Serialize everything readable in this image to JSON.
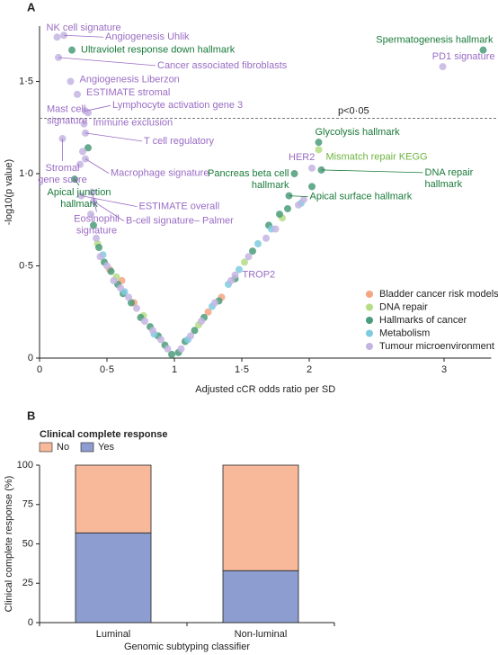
{
  "chart_data": [
    {
      "panel": "A",
      "type": "scatter",
      "xlabel": "Adjusted cCR odds ratio per SD",
      "ylabel": "-log10(p value)",
      "xlim": [
        0,
        3.35
      ],
      "ylim": [
        0,
        1.8
      ],
      "xticks": [
        0,
        {
          "value": 0.5,
          "label": "0·5"
        },
        1,
        {
          "value": 1.5,
          "label": "1·5"
        },
        2,
        3
      ],
      "yticks": [
        0,
        {
          "value": 0.5,
          "label": "0·5"
        },
        {
          "value": 1,
          "label": "1·0"
        },
        {
          "value": 1.5,
          "label": "1·5"
        }
      ],
      "threshold": 1.3,
      "threshold_label": "p<0·05",
      "legend": "lower right",
      "series": [
        {
          "name": "Bladder cancer risk models",
          "color": "#f4a582",
          "x": [
            0.52,
            0.61,
            0.7,
            1.25,
            1.35
          ],
          "values": [
            0.48,
            0.42,
            0.3,
            0.25,
            0.33
          ]
        },
        {
          "name": "DNA repair",
          "color": "#b5dd85",
          "label_color": "#6db33f",
          "x": [
            2.07,
            0.43,
            0.57,
            0.77,
            1.18,
            1.52,
            1.8
          ],
          "values": [
            1.13,
            0.62,
            0.44,
            0.23,
            0.18,
            0.52,
            0.76
          ],
          "labels": [
            "Mismatch repair KEGG",
            null,
            null,
            null,
            null,
            null,
            null
          ]
        },
        {
          "name": "Hallmarks of cancer",
          "color": "#4b9c7a",
          "label_color": "#1a7a3a",
          "x": [
            0.24,
            3.29,
            0.26,
            2.07,
            1.89,
            2.09,
            1.85,
            0.36,
            0.4,
            0.44,
            0.48,
            0.53,
            0.58,
            0.62,
            0.68,
            0.75,
            0.82,
            0.88,
            0.93,
            0.98,
            1.03,
            1.08,
            1.15,
            1.22,
            1.33,
            1.45,
            1.58,
            1.7,
            1.78,
            1.84,
            2.02
          ],
          "values": [
            1.67,
            1.67,
            0.97,
            1.17,
            1.0,
            1.02,
            0.88,
            1.14,
            0.72,
            0.6,
            0.52,
            0.47,
            0.4,
            0.35,
            0.3,
            0.22,
            0.17,
            0.12,
            0.07,
            0.02,
            0.03,
            0.09,
            0.15,
            0.22,
            0.31,
            0.43,
            0.58,
            0.72,
            0.78,
            0.81,
            0.93
          ],
          "labels": [
            "Ultraviolet response down hallmark",
            "Spermatogenesis hallmark",
            "Apical junction\nhallmark",
            "Glycolysis hallmark",
            "Pancreas beta cell\nhallmark",
            "DNA repair\nhallmark",
            "Apical surface hallmark",
            null,
            null,
            null,
            null,
            null,
            null,
            null,
            null,
            null,
            null,
            null,
            null,
            null,
            null,
            null,
            null,
            null,
            null,
            null,
            null,
            null,
            null,
            null,
            null
          ]
        },
        {
          "name": "Metabolism",
          "color": "#7fcbe0",
          "x": [
            0.47,
            0.63,
            0.85,
            1.1,
            1.28,
            1.4,
            1.48,
            1.62,
            1.72,
            1.94
          ],
          "values": [
            0.56,
            0.36,
            0.13,
            0.1,
            0.28,
            0.4,
            0.48,
            0.62,
            0.7,
            0.84
          ]
        },
        {
          "name": "Tumour microenvironment",
          "color": "#c4b4e2",
          "label_color": "#9a6cc4",
          "x": [
            0.13,
            0.18,
            0.14,
            0.23,
            0.28,
            0.36,
            0.34,
            0.33,
            0.34,
            0.17,
            0.34,
            0.31,
            0.39,
            0.4,
            1.45,
            2.02,
            2.99,
            0.32,
            0.3,
            0.38,
            0.42,
            0.45,
            0.5,
            0.55,
            0.6,
            0.66,
            0.72,
            0.78,
            0.84,
            0.9,
            0.95,
            1.05,
            1.12,
            1.2,
            1.3,
            1.42,
            1.55,
            1.68,
            1.75,
            1.92,
            1.96
          ],
          "values": [
            1.74,
            1.75,
            1.63,
            1.5,
            1.43,
            1.33,
            1.34,
            1.27,
            1.22,
            1.19,
            1.08,
            0.88,
            0.9,
            0.85,
            0.45,
            1.03,
            1.58,
            1.12,
            1.05,
            0.78,
            0.65,
            0.55,
            0.5,
            0.42,
            0.38,
            0.33,
            0.27,
            0.2,
            0.15,
            0.1,
            0.05,
            0.05,
            0.12,
            0.2,
            0.3,
            0.42,
            0.55,
            0.65,
            0.7,
            0.83,
            0.86
          ],
          "labels": [
            "NK cell signature",
            "Angiogenesis Uhlik",
            "Cancer associated fibroblasts",
            "Angiogenesis Liberzon",
            "ESTIMATE stromal",
            "Mast cell\nsignature",
            "Lymphocyte activation gene 3",
            "Immune exclusion",
            "T cell regulatory",
            "Stromal\ngene score",
            "Macrophage signature",
            "ESTIMATE overall",
            "Eosinophil\nsignature",
            "B-cell signature– Palmer",
            "TROP2",
            "HER2",
            "PD1 signature",
            null,
            null,
            null,
            null,
            null,
            null,
            null,
            null,
            null,
            null,
            null,
            null,
            null,
            null,
            null,
            null,
            null,
            null,
            null,
            null,
            null,
            null,
            null,
            null
          ]
        }
      ]
    },
    {
      "panel": "B",
      "type": "bar",
      "stacked": true,
      "xlabel": "Genomic subtyping classifier",
      "ylabel": "Clinical complete response (%)",
      "legend_title": "Clinical complete response",
      "legend": "top left",
      "categories": [
        "Luminal",
        "Non-luminal"
      ],
      "ylim": [
        0,
        100
      ],
      "yticks": [
        0,
        25,
        50,
        75,
        100
      ],
      "series": [
        {
          "name": "Yes",
          "color": "#8e9dd0",
          "values": [
            57,
            33
          ]
        },
        {
          "name": "No",
          "color": "#f8b99b",
          "values": [
            43,
            67
          ]
        }
      ]
    }
  ]
}
